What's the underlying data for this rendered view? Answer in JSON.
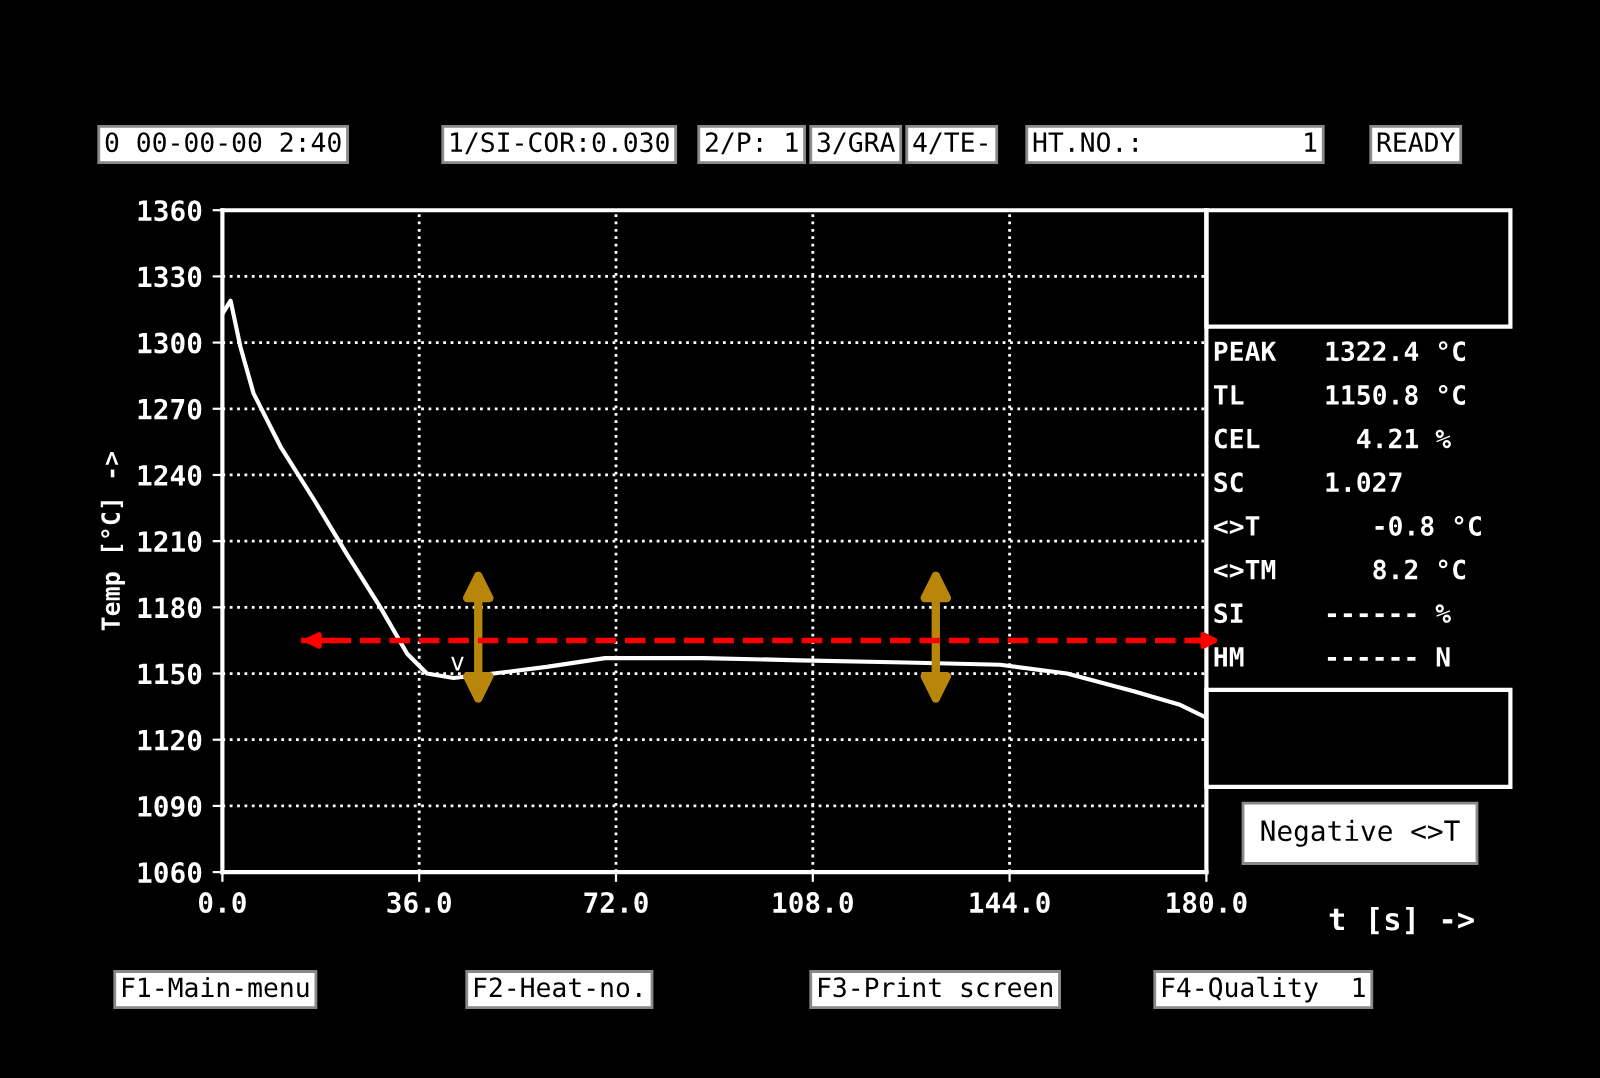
{
  "chart_data": {
    "type": "line",
    "xlabel": "t [s] ->",
    "ylabel": "Temp [°C] ->",
    "x": [
      0,
      1.5,
      3.3,
      5.7,
      10.6,
      16.7,
      22.8,
      28.9,
      33.8,
      37.4,
      42.3,
      49.6,
      59.3,
      70,
      88,
      105.7,
      125,
      142.3,
      154.5,
      166.7,
      175,
      180
    ],
    "series": [
      {
        "color": "#ffffff",
        "values": [
          1313,
          1319,
          1298,
          1277,
          1253,
          1229,
          1204,
          1180,
          1159,
          1150,
          1148,
          1150,
          1153,
          1157,
          1157,
          1156,
          1155,
          1154,
          1150,
          1142,
          1136,
          1130
        ]
      }
    ],
    "xlim": [
      0,
      180
    ],
    "ylim": [
      1060,
      1360
    ],
    "xticks": [
      {
        "value": 0,
        "label": "0.0"
      },
      {
        "value": 36,
        "label": "36.0"
      },
      {
        "value": 72,
        "label": "72.0"
      },
      {
        "value": 108,
        "label": "108.0"
      },
      {
        "value": 144,
        "label": "144.0"
      },
      {
        "value": 180,
        "label": "180.0"
      }
    ],
    "yticks": [
      1060,
      1090,
      1120,
      1150,
      1180,
      1210,
      1240,
      1270,
      1300,
      1330,
      1360
    ],
    "grid": true,
    "line_style": "solid",
    "ref_lines": [
      {
        "axis": "y",
        "value": 1165,
        "color": "#ff0000",
        "line_style": "dashed"
      }
    ],
    "annotations": [
      {
        "text": "v",
        "x": 43,
        "y": 1149
      },
      "0 00-00-00 2:40",
      "1/SI-COR:0.030",
      "2/P: 1",
      "3/GRA",
      "4/TE-",
      "HT.NO.:          1",
      "READY",
      "PEAK   1322.4 °C",
      "TL     1150.8 °C",
      "CEL      4.21 %",
      "SC     1.027",
      "<>T       -0.8 °C",
      "<>TM      8.2 °C",
      "SI     ------ %",
      "HM     ------ N",
      "Negative <>T",
      "F1-Main-menu",
      "F2-Heat-no.",
      "F3-Print screen",
      "F4-Quality  1"
    ]
  }
}
